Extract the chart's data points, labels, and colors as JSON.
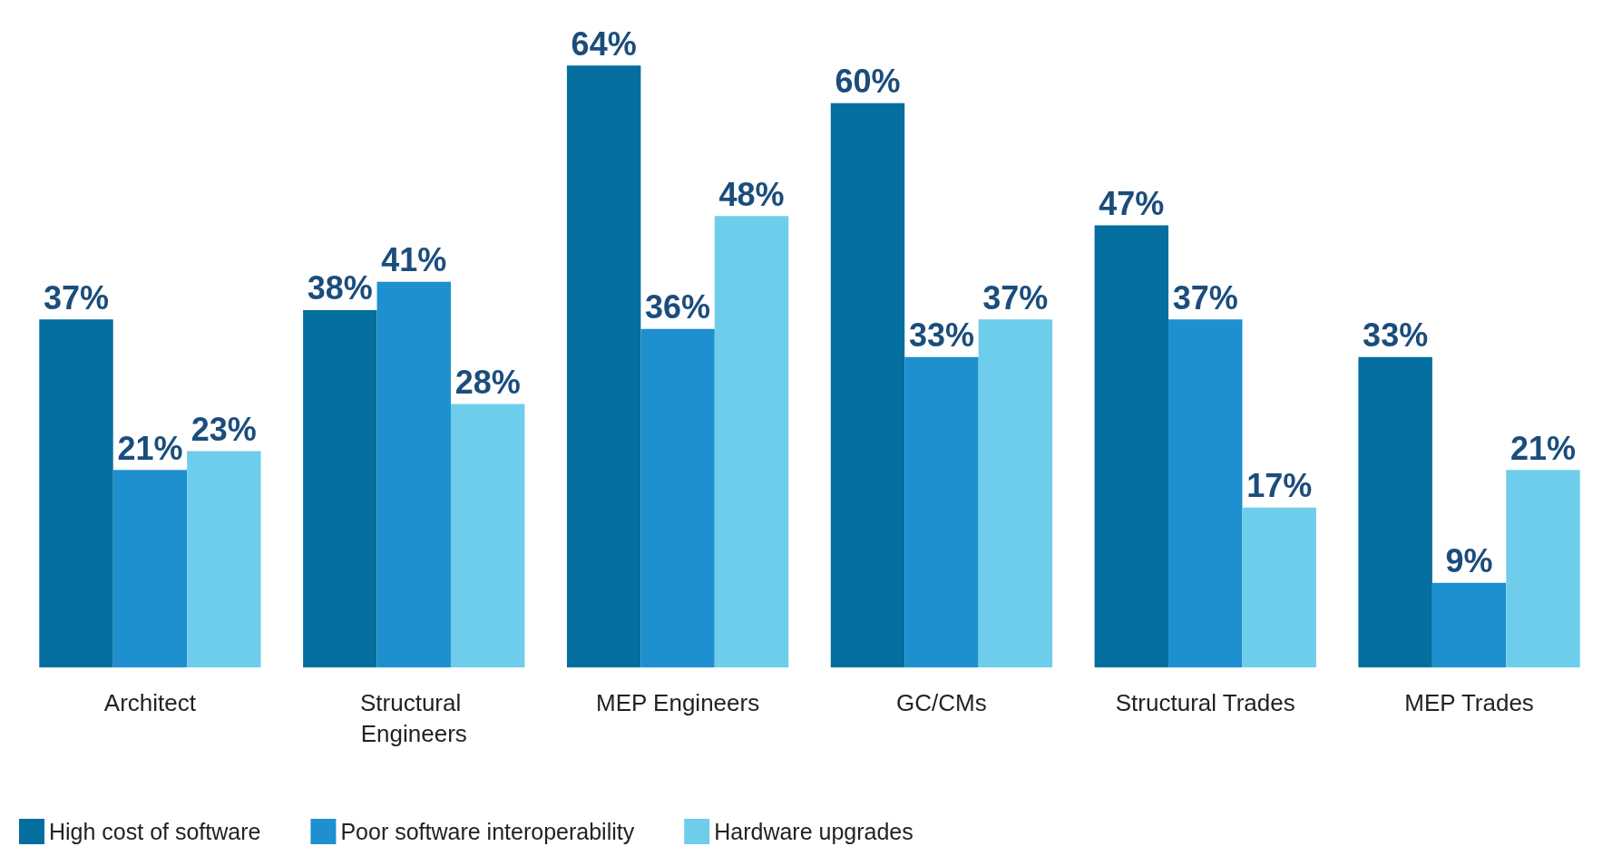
{
  "chart_data": {
    "type": "bar",
    "categories": [
      "Architect",
      "Structural Engineers",
      "MEP Engineers",
      "GC/CMs",
      "Structural Trades",
      "MEP Trades"
    ],
    "series": [
      {
        "name": "High cost of software",
        "color": "#046e9e",
        "values": [
          37,
          38,
          64,
          60,
          47,
          33
        ],
        "value_labels": [
          "37%",
          "38%",
          "64%",
          "60%",
          "47%",
          "33%"
        ]
      },
      {
        "name": "Poor software interoperability",
        "color": "#1e90cf",
        "values": [
          21,
          41,
          36,
          33,
          37,
          9
        ],
        "value_labels": [
          "21%",
          "41%",
          "36%",
          "33%",
          "37%",
          "9%"
        ]
      },
      {
        "name": "Hardware upgrades",
        "color": "#6fcdec",
        "values": [
          23,
          28,
          48,
          37,
          17,
          21
        ],
        "value_labels": [
          "23%",
          "28%",
          "48%",
          "37%",
          "17%",
          "21%"
        ]
      }
    ],
    "legend": "bottom left"
  }
}
